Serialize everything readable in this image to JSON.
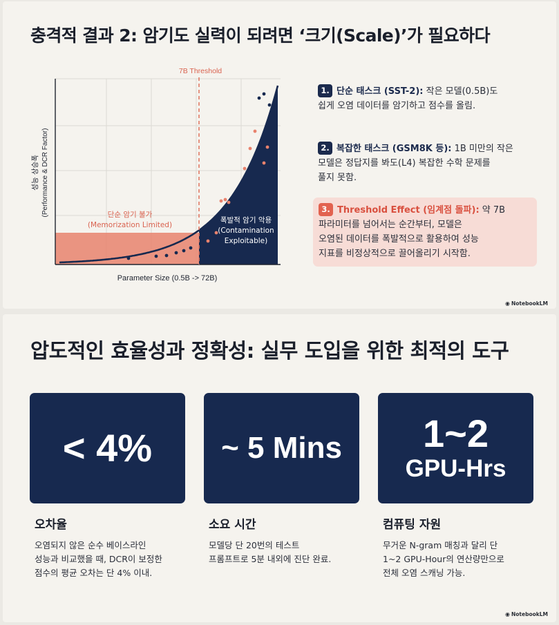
{
  "slide1": {
    "title": "충격적 결과 2: 암기도 실력이 되려면 ‘크기(Scale)’가 필요하다",
    "watermark": "NotebookLM",
    "items": [
      {
        "num": "1.",
        "head": "단순 태스크 (SST-2):",
        "lines": [
          " 작은 모델(0.5B)도",
          "쉽게 오염 데이터를 암기하고 점수를 올림."
        ]
      },
      {
        "num": "2.",
        "head": "복잡한 태스크 (GSM8K 등):",
        "lines": [
          " 1B 미만의 작은",
          "모델은 정답지를 봐도(L4) 복잡한 수학 문제를",
          "풀지 못함."
        ]
      },
      {
        "num": "3.",
        "head": "Threshold Effect (임계점 돌파):",
        "lines": [
          " 약 7B",
          "파라미터를 넘어서는 순간부터, 모델은",
          "오염된 데이터를 폭발적으로 활용하여 성능",
          "지표를 비정상적으로 끌어올리기 시작함."
        ]
      }
    ]
  },
  "chart_data": {
    "type": "area",
    "ylabel_line1": "성능 상승폭",
    "ylabel_line2": "(Performance & DCR Factor)",
    "xlabel": "Parameter Size (0.5B -> 72B)",
    "threshold_label": "7B Threshold",
    "region_left_label_line1": "단순 암기 불가",
    "region_left_label_line2": "(Memorization Limited)",
    "region_right_label_line1": "폭발적 암기 악용",
    "region_right_label_line2": "(Contamination",
    "region_right_label_line3": "Exploitable)",
    "colors": {
      "navy": "#17294f",
      "salmon": "#e07a66",
      "dashed": "#e07a66"
    }
  },
  "slide2": {
    "title": "압도적인 효율성과 정확성: 실무 도입을 위한 최적의 도구",
    "watermark": "NotebookLM",
    "cards": [
      {
        "value": "< 4%",
        "caption_title": "오차율",
        "caption_lines": [
          "오염되지 않은 순수 베이스라인",
          "성능과 비교했을 때, DCR이 보정한",
          "점수의 평균 오차는 단 4% 이내."
        ]
      },
      {
        "value": "~ 5 Mins",
        "caption_title": "소요 시간",
        "caption_lines": [
          "모델당 단 20번의 테스트",
          "프롬프트로 5분 내외에 진단 완료."
        ]
      },
      {
        "value_line1": "1~2",
        "value_line2": "GPU-Hrs",
        "caption_title": "컴퓨팅 자원",
        "caption_lines": [
          "무거운 N-gram 매칭과 달리 단",
          "1~2 GPU-Hour의 연산량만으로",
          "전체 오염 스캐닝 가능."
        ]
      }
    ]
  }
}
